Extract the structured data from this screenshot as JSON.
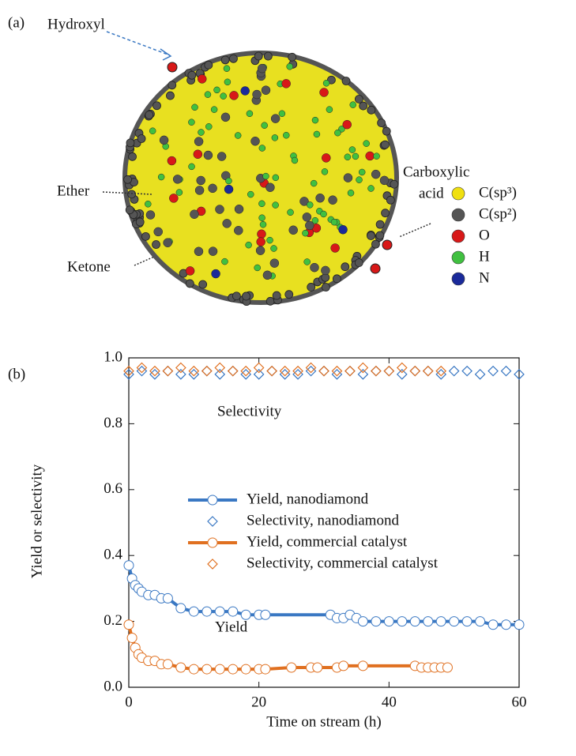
{
  "diagram": {
    "label": "(a)",
    "annotations": [
      "Hydroxyl",
      "Ether",
      "Ketone",
      "Carboxylic",
      "acid"
    ],
    "legend": [
      {
        "name": "C(sp³)",
        "color": "#f0e010"
      },
      {
        "name": "C(sp²)",
        "color": "#555555"
      },
      {
        "name": "O",
        "color": "#d81818"
      },
      {
        "name": "H",
        "color": "#40c040"
      },
      {
        "name": "N",
        "color": "#1a2a9a"
      }
    ]
  },
  "chart_data": {
    "type": "line",
    "label": "(b)",
    "xlabel": "Time on stream (h)",
    "ylabel": "Yield or selectivity",
    "annotations": [
      "Selectivity",
      "Yield"
    ],
    "xlim": [
      0,
      60
    ],
    "ylim": [
      0,
      1
    ],
    "xticks": [
      0,
      20,
      40,
      60
    ],
    "yticks": [
      {
        "value": 0,
        "label": "0.0"
      },
      0.2,
      0.4,
      0.6,
      0.8,
      {
        "value": 1,
        "label": "1.0"
      }
    ],
    "series": [
      {
        "name": "Yield, nanodiamond",
        "color": "#3a78c3",
        "marker": "circle",
        "line": true,
        "x": [
          0,
          0.5,
          1,
          1.5,
          2,
          3,
          4,
          5,
          6,
          8,
          10,
          12,
          14,
          16,
          18,
          20,
          21,
          31,
          32,
          33,
          34,
          35,
          36,
          38,
          40,
          42,
          44,
          46,
          48,
          50,
          52,
          54,
          56,
          58,
          60
        ],
        "values": [
          0.37,
          0.33,
          0.31,
          0.3,
          0.29,
          0.28,
          0.28,
          0.27,
          0.27,
          0.24,
          0.23,
          0.23,
          0.23,
          0.23,
          0.22,
          0.22,
          0.22,
          0.22,
          0.21,
          0.21,
          0.22,
          0.21,
          0.2,
          0.2,
          0.2,
          0.2,
          0.2,
          0.2,
          0.2,
          0.2,
          0.2,
          0.2,
          0.19,
          0.19,
          0.19
        ]
      },
      {
        "name": "Selectivity, nanodiamond",
        "color": "#3a78c3",
        "marker": "diamond",
        "line": false,
        "x": [
          0,
          2,
          4,
          6,
          8,
          10,
          12,
          14,
          16,
          18,
          20,
          22,
          24,
          26,
          28,
          30,
          32,
          34,
          36,
          38,
          40,
          42,
          44,
          46,
          48,
          50,
          52,
          54,
          56,
          58,
          60
        ],
        "values": [
          0.95,
          0.96,
          0.95,
          0.96,
          0.95,
          0.95,
          0.96,
          0.95,
          0.96,
          0.95,
          0.95,
          0.96,
          0.95,
          0.95,
          0.96,
          0.96,
          0.95,
          0.96,
          0.95,
          0.96,
          0.96,
          0.95,
          0.96,
          0.96,
          0.95,
          0.96,
          0.96,
          0.95,
          0.96,
          0.96,
          0.95
        ]
      },
      {
        "name": "Yield, commercial catalyst",
        "color": "#e07020",
        "marker": "circle",
        "line": true,
        "x": [
          0,
          0.5,
          1,
          1.5,
          2,
          3,
          4,
          5,
          6,
          8,
          10,
          12,
          14,
          16,
          18,
          20,
          21,
          25,
          28,
          29,
          32,
          33,
          36,
          44,
          45,
          46,
          47,
          48,
          49
        ],
        "values": [
          0.19,
          0.15,
          0.12,
          0.1,
          0.09,
          0.08,
          0.08,
          0.07,
          0.07,
          0.06,
          0.055,
          0.055,
          0.055,
          0.055,
          0.055,
          0.055,
          0.055,
          0.06,
          0.06,
          0.06,
          0.06,
          0.065,
          0.065,
          0.065,
          0.06,
          0.06,
          0.06,
          0.06,
          0.06
        ]
      },
      {
        "name": "Selectivity, commercial catalyst",
        "color": "#e07020",
        "marker": "diamond",
        "line": false,
        "x": [
          0,
          2,
          4,
          6,
          8,
          10,
          12,
          14,
          16,
          18,
          20,
          22,
          24,
          26,
          28,
          30,
          32,
          34,
          36,
          38,
          40,
          42,
          44,
          46,
          48
        ],
        "values": [
          0.96,
          0.97,
          0.96,
          0.96,
          0.97,
          0.96,
          0.96,
          0.97,
          0.96,
          0.96,
          0.97,
          0.96,
          0.96,
          0.96,
          0.97,
          0.96,
          0.96,
          0.96,
          0.97,
          0.96,
          0.96,
          0.97,
          0.96,
          0.96,
          0.96
        ]
      }
    ]
  }
}
